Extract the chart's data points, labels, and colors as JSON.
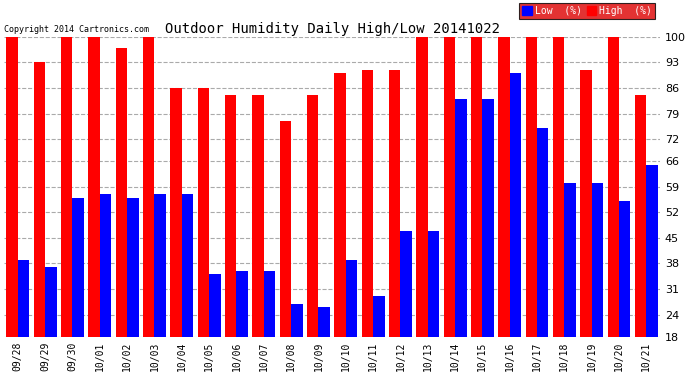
{
  "title": "Outdoor Humidity Daily High/Low 20141022",
  "copyright": "Copyright 2014 Cartronics.com",
  "labels": [
    "09/28",
    "09/29",
    "09/30",
    "10/01",
    "10/02",
    "10/03",
    "10/04",
    "10/05",
    "10/06",
    "10/07",
    "10/08",
    "10/09",
    "10/10",
    "10/11",
    "10/12",
    "10/13",
    "10/14",
    "10/15",
    "10/16",
    "10/17",
    "10/18",
    "10/19",
    "10/20",
    "10/21"
  ],
  "high": [
    100,
    93,
    100,
    100,
    97,
    100,
    86,
    86,
    84,
    84,
    77,
    84,
    90,
    91,
    91,
    100,
    100,
    100,
    100,
    100,
    100,
    91,
    100,
    84
  ],
  "low": [
    39,
    37,
    56,
    57,
    56,
    57,
    57,
    35,
    36,
    36,
    27,
    26,
    39,
    29,
    47,
    47,
    83,
    83,
    90,
    75,
    60,
    60,
    55,
    65
  ],
  "high_color": "#ff0000",
  "low_color": "#0000ff",
  "bg_color": "#ffffff",
  "plot_bg": "#ffffff",
  "grid_color": "#aaaaaa",
  "yticks": [
    18,
    24,
    31,
    38,
    45,
    52,
    59,
    66,
    72,
    79,
    86,
    93,
    100
  ],
  "ymin": 18,
  "ymax": 100,
  "legend_low_label": "Low  (%)",
  "legend_high_label": "High  (%)"
}
